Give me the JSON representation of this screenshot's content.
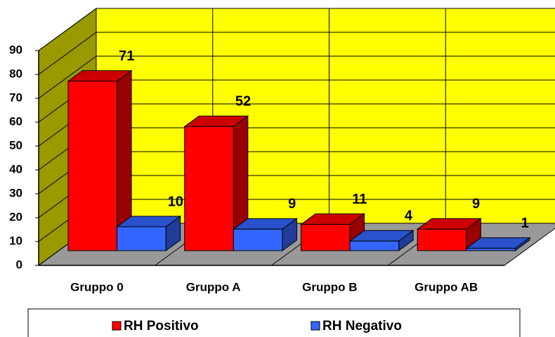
{
  "chart_data": {
    "type": "bar3d",
    "categories": [
      "Gruppo 0",
      "Gruppo A",
      "Gruppo B",
      "Gruppo AB"
    ],
    "series": [
      {
        "name": "RH Positivo",
        "color": "#ff0000",
        "values": [
          71,
          52,
          11,
          9
        ]
      },
      {
        "name": "RH Negativo",
        "color": "#3366ff",
        "values": [
          10,
          9,
          4,
          1
        ]
      }
    ],
    "ylim": [
      0,
      90
    ],
    "yticks": [
      0,
      10,
      20,
      30,
      40,
      50,
      60,
      70,
      80,
      90
    ],
    "grid": true,
    "legend": "bottom"
  }
}
